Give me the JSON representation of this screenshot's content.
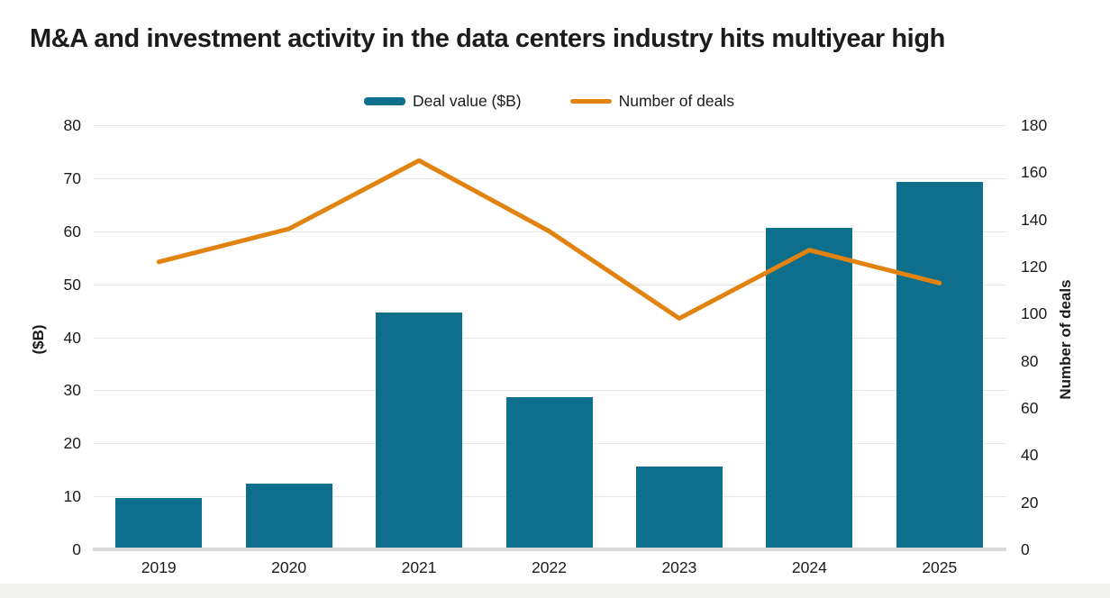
{
  "title": "M&A and investment activity in the data centers industry hits multiyear high",
  "chart_data": {
    "type": "combo",
    "title": "M&A and investment activity in the data centers industry hits multiyear high",
    "categories": [
      "2019",
      "2020",
      "2021",
      "2022",
      "2023",
      "2024",
      "2025"
    ],
    "series": [
      {
        "name": "Deal value ($B)",
        "type": "bar",
        "axis": "left",
        "color": "#0e6f8c",
        "values": [
          9.7,
          12.4,
          44.7,
          28.7,
          15.7,
          60.7,
          69.3
        ]
      },
      {
        "name": "Number of deals",
        "type": "line",
        "axis": "right",
        "color": "#e2820f",
        "values": [
          122,
          136,
          165,
          135,
          98,
          127,
          113
        ]
      }
    ],
    "left_axis": {
      "label": "($B)",
      "min": 0,
      "max": 80,
      "ticks": [
        0,
        10,
        20,
        30,
        40,
        50,
        60,
        70,
        80
      ]
    },
    "right_axis": {
      "label": "Number of deals",
      "min": 0,
      "max": 180,
      "ticks": [
        0,
        20,
        40,
        60,
        80,
        100,
        120,
        140,
        160,
        180
      ]
    },
    "grid": "horizontal",
    "legend_position": "top"
  },
  "colors": {
    "bar": "#0e6f8c",
    "line": "#e2820f",
    "gridline": "#e7e7e7",
    "baseline": "#d9d9d9",
    "text": "#1b1b1b"
  }
}
